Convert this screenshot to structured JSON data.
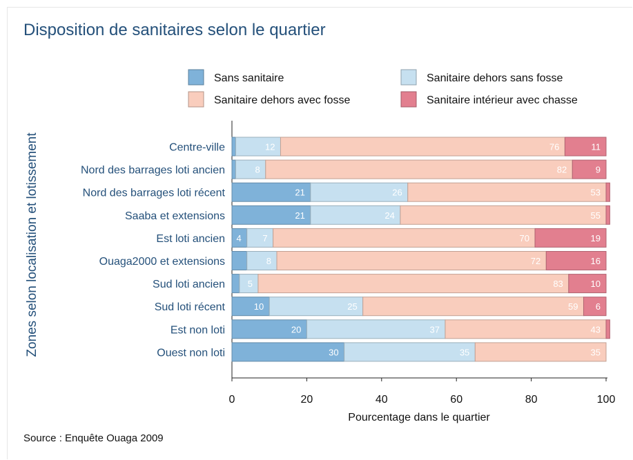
{
  "title": "Disposition de sanitaires selon le quartier",
  "source": "Source : Enquête Ouaga 2009",
  "chart_data": {
    "type": "bar",
    "orientation": "horizontal",
    "stacked": true,
    "title": "Disposition de sanitaires selon le quartier",
    "xlabel": "Pourcentage dans le quartier",
    "ylabel": "Zones selon localisation et lotissement",
    "xlim": [
      0,
      100
    ],
    "xticks": [
      0,
      20,
      40,
      60,
      80,
      100
    ],
    "xtick_labels": [
      "0",
      "20",
      "40",
      "60",
      "80",
      "100"
    ],
    "legend_position": "top",
    "grid": false,
    "categories": [
      "Centre-ville",
      "Nord des barrages loti ancien",
      "Nord des barrages loti récent",
      "Saaba et extensions",
      "Est loti ancien",
      "Ouaga2000 et extensions",
      "Sud loti ancien",
      "Sud loti récent",
      "Est non loti",
      "Ouest non loti"
    ],
    "series": [
      {
        "name": "Sans sanitaire",
        "color": "#7fb2d9",
        "values": [
          1,
          1,
          21,
          21,
          4,
          4,
          2,
          10,
          20,
          30
        ],
        "labels": [
          "",
          "",
          "21",
          "21",
          "4",
          "",
          "",
          "10",
          "20",
          "30"
        ]
      },
      {
        "name": "Sanitaire dehors sans fosse",
        "color": "#c6e0f0",
        "values": [
          12,
          8,
          26,
          24,
          7,
          8,
          5,
          25,
          37,
          35
        ],
        "labels": [
          "12",
          "8",
          "26",
          "24",
          "7",
          "8",
          "5",
          "25",
          "37",
          "35"
        ]
      },
      {
        "name": "Sanitaire dehors avec fosse",
        "color": "#f9cdbd",
        "values": [
          76,
          82,
          53,
          55,
          70,
          72,
          83,
          59,
          43,
          35
        ],
        "labels": [
          "76",
          "82",
          "53",
          "55",
          "70",
          "72",
          "83",
          "59",
          "43",
          "35"
        ]
      },
      {
        "name": "Sanitaire intérieur avec chasse",
        "color": "#e27f8f",
        "values": [
          11,
          9,
          1,
          1,
          19,
          16,
          10,
          6,
          1,
          0
        ],
        "labels": [
          "11",
          "9",
          "",
          "",
          "19",
          "16",
          "10",
          "6",
          "",
          ""
        ]
      }
    ]
  }
}
